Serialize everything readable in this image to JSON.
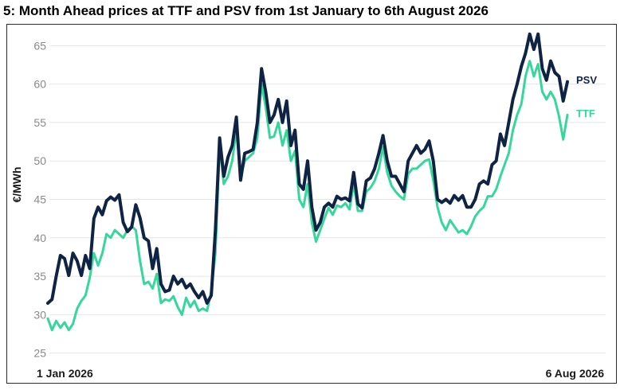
{
  "figure_title": "5: Month Ahead prices at TTF and PSV from 1st January to 6th August 2026",
  "chart_data": {
    "type": "line",
    "title": "5: Month Ahead prices at TTF and PSV from 1st January to 6th August 2026",
    "ylabel": "€/MWh",
    "xlabel": "",
    "x_start_label": "1 Jan 2026",
    "x_end_label": "6 Aug 2026",
    "ylim": [
      23,
      67
    ],
    "yticks": [
      25,
      30,
      35,
      40,
      45,
      50,
      55,
      60,
      65
    ],
    "grid": "horizontal",
    "series": [
      {
        "name": "PSV",
        "color": "#0f2444",
        "values": [
          31.5,
          32.0,
          35.0,
          37.7,
          37.3,
          35.1,
          38.0,
          37.0,
          35.1,
          37.7,
          36.0,
          42.5,
          44.0,
          43.0,
          44.8,
          45.3,
          44.9,
          45.6,
          42.0,
          40.8,
          41.4,
          44.3,
          42.6,
          40.0,
          39.6,
          36.0,
          38.6,
          34.0,
          33.0,
          33.2,
          35.0,
          34.0,
          34.6,
          33.5,
          34.0,
          33.0,
          32.2,
          33.0,
          31.5,
          32.5,
          41.0,
          53.0,
          48.0,
          50.5,
          52.0,
          55.7,
          47.5,
          51.0,
          51.2,
          51.5,
          55.0,
          62.0,
          59.0,
          55.0,
          56.0,
          58.0,
          55.0,
          57.8,
          52.0,
          54.0,
          47.0,
          46.3,
          50.0,
          44.0,
          41.0,
          42.0,
          44.0,
          44.5,
          44.0,
          45.4,
          45.0,
          45.2,
          44.8,
          48.5,
          44.4,
          43.9,
          47.4,
          47.8,
          49.0,
          51.0,
          53.3,
          50.0,
          48.0,
          48.0,
          47.0,
          46.0,
          50.0,
          51.0,
          52.0,
          51.0,
          51.5,
          52.6,
          50.0,
          45.0,
          44.6,
          45.0,
          44.5,
          45.5,
          44.9,
          45.5,
          44.0,
          44.0,
          45.0,
          47.0,
          47.4,
          47.0,
          49.5,
          50.0,
          53.5,
          52.0,
          55.0,
          58.0,
          60.0,
          62.3,
          64.0,
          66.5,
          64.5,
          66.5,
          62.0,
          60.5,
          63.0,
          61.5,
          61.0,
          57.8,
          60.3
        ]
      },
      {
        "name": "TTF",
        "color": "#35d89a",
        "values": [
          29.5,
          28.0,
          29.2,
          28.3,
          29.0,
          28.0,
          28.8,
          30.8,
          31.8,
          32.5,
          34.8,
          38.0,
          36.4,
          38.0,
          40.5,
          40.0,
          41.0,
          40.5,
          40.0,
          41.0,
          41.5,
          41.0,
          37.0,
          34.0,
          34.3,
          33.4,
          35.3,
          31.5,
          32.0,
          31.8,
          32.4,
          31.0,
          30.0,
          32.2,
          31.0,
          31.8,
          30.5,
          30.8,
          30.5,
          33.0,
          38.0,
          52.0,
          47.0,
          48.0,
          50.0,
          54.0,
          48.0,
          50.0,
          50.5,
          51.0,
          53.0,
          60.0,
          57.0,
          53.0,
          53.2,
          55.0,
          52.0,
          54.0,
          50.0,
          51.3,
          45.0,
          44.0,
          47.0,
          42.0,
          39.5,
          41.0,
          42.5,
          43.9,
          43.0,
          44.2,
          44.0,
          44.5,
          43.7,
          47.0,
          43.5,
          43.5,
          46.0,
          46.5,
          47.4,
          49.0,
          51.8,
          48.5,
          46.8,
          46.0,
          45.4,
          45.0,
          48.3,
          49.0,
          49.0,
          49.5,
          50.0,
          50.2,
          47.5,
          44.0,
          42.0,
          41.0,
          42.3,
          41.5,
          40.7,
          41.0,
          40.5,
          41.5,
          42.8,
          43.5,
          44.0,
          45.4,
          45.4,
          46.3,
          48.0,
          49.5,
          51.0,
          54.0,
          56.0,
          57.4,
          61.0,
          63.0,
          61.0,
          62.6,
          59.0,
          58.0,
          59.0,
          58.0,
          55.8,
          52.8,
          56.0
        ]
      }
    ]
  }
}
